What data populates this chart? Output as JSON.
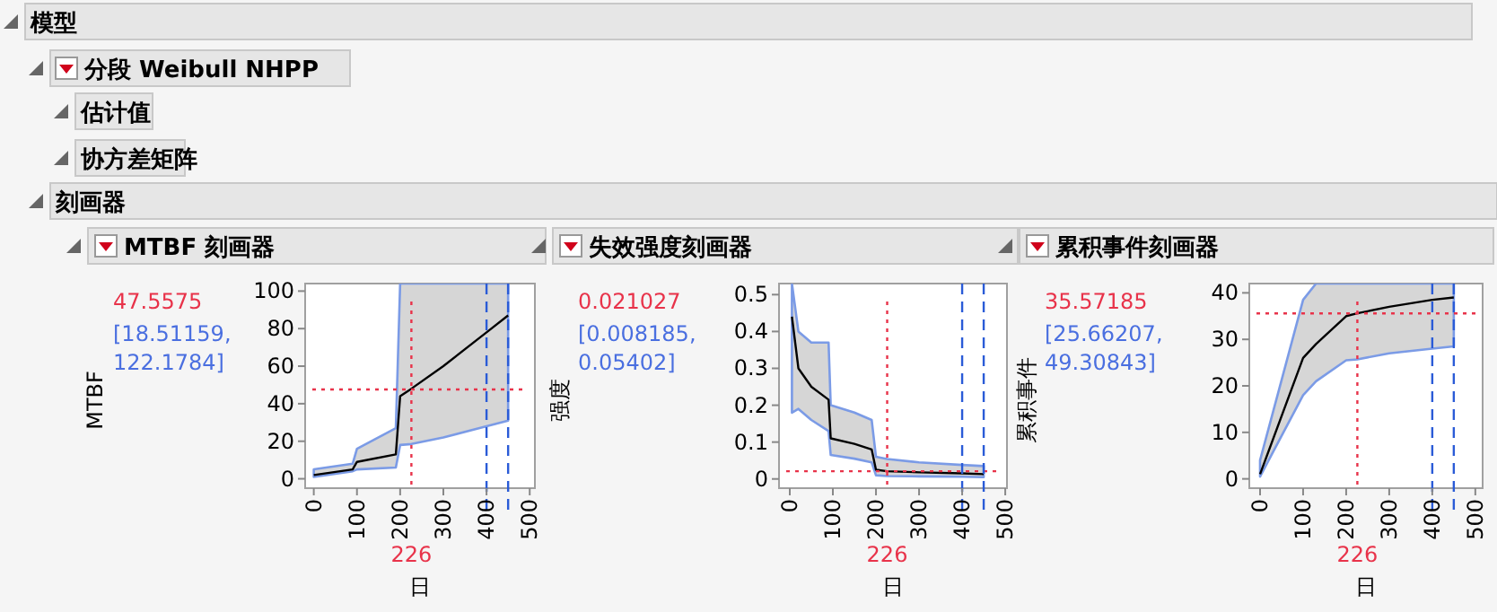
{
  "chart_data": [
    {
      "type": "other",
      "annotations": [
        "模型",
        "分段 Weibull NHPP",
        "估计值",
        "协方差矩阵",
        "刻画器"
      ]
    },
    {
      "type": "line",
      "title": "MTBF 刻画器",
      "xlabel": "日",
      "ylabel": "MTBF",
      "xlim": [
        -20,
        512
      ],
      "xticks": [
        0,
        100,
        200,
        300,
        400,
        500
      ],
      "ylim": [
        -5,
        104
      ],
      "yticks": [
        0,
        20,
        40,
        60,
        80,
        100
      ],
      "grid": false,
      "marker": "none",
      "line_style": "solid",
      "x": [
        0,
        90,
        100,
        190,
        200,
        226,
        300,
        400,
        450
      ],
      "series": [
        {
          "color": "#000000",
          "values": [
            2,
            5,
            9,
            13,
            44,
            48,
            60,
            78,
            87
          ],
          "lower": [
            1,
            4,
            5,
            6,
            18,
            18.5,
            22,
            28,
            31
          ],
          "upper": [
            5,
            8,
            16,
            27,
            104,
            104,
            104,
            104,
            104
          ]
        }
      ],
      "ref_lines": [
        {
          "axis": "x",
          "value": 226,
          "label": "226",
          "color": "#e8334a",
          "line_style": "dotted"
        },
        {
          "axis": "y",
          "value": 47.5575,
          "label": "47.5575",
          "color": "#e8334a",
          "line_style": "dotted"
        },
        {
          "axis": "x",
          "value": 400,
          "color": "#2a5bd7",
          "line_style": "dashed"
        },
        {
          "axis": "x",
          "value": 450,
          "color": "#2a5bd7",
          "line_style": "dashed"
        }
      ],
      "annotations": [
        "[18.51159, 122.1784]"
      ]
    },
    {
      "type": "line",
      "title": "失效强度刻画器",
      "xlabel": "日",
      "ylabel": "强度",
      "xlim": [
        -25,
        504
      ],
      "xticks": [
        0,
        100,
        200,
        300,
        400,
        500
      ],
      "ylim": [
        -0.025,
        0.53
      ],
      "yticks": [
        0,
        0.1,
        0.2,
        0.3,
        0.4,
        0.5
      ],
      "grid": false,
      "marker": "none",
      "line_style": "solid",
      "x": [
        5,
        20,
        50,
        90,
        95,
        150,
        190,
        200,
        226,
        300,
        400,
        450
      ],
      "series": [
        {
          "color": "#000000",
          "values": [
            0.44,
            0.3,
            0.25,
            0.215,
            0.11,
            0.095,
            0.08,
            0.025,
            0.021,
            0.018,
            0.015,
            0.013
          ],
          "lower": [
            0.18,
            0.19,
            0.16,
            0.13,
            0.065,
            0.055,
            0.045,
            0.01,
            0.008,
            0.007,
            0.006,
            0.005
          ],
          "upper": [
            0.53,
            0.4,
            0.37,
            0.37,
            0.2,
            0.18,
            0.16,
            0.06,
            0.054,
            0.045,
            0.038,
            0.035
          ]
        }
      ],
      "ref_lines": [
        {
          "axis": "x",
          "value": 226,
          "label": "226",
          "color": "#e8334a",
          "line_style": "dotted"
        },
        {
          "axis": "y",
          "value": 0.021027,
          "label": "0.021027",
          "color": "#e8334a",
          "line_style": "dotted"
        },
        {
          "axis": "x",
          "value": 400,
          "color": "#2a5bd7",
          "line_style": "dashed"
        },
        {
          "axis": "x",
          "value": 450,
          "color": "#2a5bd7",
          "line_style": "dashed"
        }
      ],
      "annotations": [
        "[0.008185, 0.05402]"
      ]
    },
    {
      "type": "line",
      "title": "累积事件刻画器",
      "xlabel": "日",
      "ylabel": "累积事件",
      "xlim": [
        -25,
        517
      ],
      "xticks": [
        0,
        100,
        200,
        300,
        400,
        500
      ],
      "ylim": [
        -2,
        42
      ],
      "yticks": [
        0,
        10,
        20,
        30,
        40
      ],
      "grid": false,
      "marker": "none",
      "line_style": "solid",
      "x": [
        0,
        100,
        130,
        200,
        226,
        300,
        400,
        450
      ],
      "series": [
        {
          "color": "#000000",
          "values": [
            1,
            26,
            29,
            35,
            35.6,
            37,
            38.5,
            39
          ],
          "lower": [
            0.5,
            18,
            21,
            25.5,
            25.7,
            27,
            28,
            28.5
          ],
          "upper": [
            4,
            38.5,
            42,
            42,
            42,
            42,
            42,
            42
          ]
        }
      ],
      "ref_lines": [
        {
          "axis": "x",
          "value": 226,
          "label": "226",
          "color": "#e8334a",
          "line_style": "dotted"
        },
        {
          "axis": "y",
          "value": 35.57185,
          "label": "35.57185",
          "color": "#e8334a",
          "line_style": "dotted"
        },
        {
          "axis": "x",
          "value": 400,
          "color": "#2a5bd7",
          "line_style": "dashed"
        },
        {
          "axis": "x",
          "value": 450,
          "color": "#2a5bd7",
          "line_style": "dashed"
        }
      ],
      "annotations": [
        "[25.66207, 49.30843]"
      ]
    }
  ]
}
